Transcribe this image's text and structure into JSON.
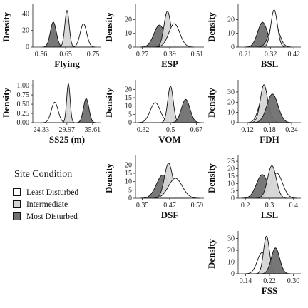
{
  "colors": {
    "least_disturbed": "#ffffff",
    "intermediate": "#d6d6d6",
    "most_disturbed": "#707070",
    "outline": "#111111"
  },
  "legend": {
    "title": "Site Condition",
    "placement": "left-middle",
    "items": [
      {
        "label": "Least Disturbed",
        "color": "#ffffff"
      },
      {
        "label": "Intermediate",
        "color": "#d6d6d6"
      },
      {
        "label": "Most Disturbed",
        "color": "#707070"
      }
    ]
  },
  "chart_data": [
    {
      "type": "area",
      "title": "",
      "xlabel": "Flying",
      "ylabel": "Density",
      "xticks": [
        "0.56",
        "0.65",
        "0.75"
      ],
      "xlim": [
        0.53,
        0.78
      ],
      "yticks": [
        "0",
        "20",
        "40"
      ],
      "ylim": [
        0,
        48
      ],
      "series": [
        {
          "name": "Most Disturbed",
          "peak_x": 0.605,
          "peak_y": 30,
          "sd": 0.011
        },
        {
          "name": "Intermediate",
          "peak_x": 0.655,
          "peak_y": 44,
          "sd": 0.008
        },
        {
          "name": "Least Disturbed",
          "peak_x": 0.715,
          "peak_y": 28,
          "sd": 0.012
        }
      ]
    },
    {
      "type": "area",
      "title": "",
      "xlabel": "ESP",
      "ylabel": "Density",
      "xticks": [
        "0.27",
        "0.39",
        "0.51"
      ],
      "xlim": [
        0.24,
        0.54
      ],
      "yticks": [
        "0",
        "10",
        "20"
      ],
      "ylim": [
        0,
        29
      ],
      "series": [
        {
          "name": "Most Disturbed",
          "peak_x": 0.345,
          "peak_y": 16,
          "sd": 0.024
        },
        {
          "name": "Intermediate",
          "peak_x": 0.38,
          "peak_y": 26,
          "sd": 0.015
        },
        {
          "name": "Least Disturbed",
          "peak_x": 0.41,
          "peak_y": 17,
          "sd": 0.024
        }
      ]
    },
    {
      "type": "area",
      "title": "",
      "xlabel": "BSL",
      "ylabel": "Density",
      "xticks": [
        "0.21",
        "0.32",
        "0.42"
      ],
      "xlim": [
        0.18,
        0.45
      ],
      "yticks": [
        "0",
        "10",
        "20"
      ],
      "ylim": [
        0,
        29
      ],
      "series": [
        {
          "name": "Most Disturbed",
          "peak_x": 0.285,
          "peak_y": 18,
          "sd": 0.021
        },
        {
          "name": "Intermediate",
          "peak_x": 0.335,
          "peak_y": 18,
          "sd": 0.021
        },
        {
          "name": "Least Disturbed",
          "peak_x": 0.335,
          "peak_y": 27,
          "sd": 0.014
        }
      ]
    },
    {
      "type": "area",
      "title": "",
      "xlabel": "SS25 (m)",
      "ylabel": "Density",
      "xticks": [
        "24.33",
        "29.97",
        "35.61"
      ],
      "xlim": [
        22.5,
        37.5
      ],
      "yticks": [
        "0.00",
        "0.25",
        "0.50",
        "0.75",
        "1.00"
      ],
      "ylim": [
        0,
        1.08
      ],
      "series": [
        {
          "name": "Least Disturbed",
          "peak_x": 27.3,
          "peak_y": 0.55,
          "sd": 0.75
        },
        {
          "name": "Intermediate",
          "peak_x": 30.3,
          "peak_y": 1.05,
          "sd": 0.38
        },
        {
          "name": "Most Disturbed",
          "peak_x": 34.2,
          "peak_y": 0.65,
          "sd": 0.6
        }
      ]
    },
    {
      "type": "area",
      "title": "",
      "xlabel": "VOM",
      "ylabel": "Density",
      "xticks": [
        "0.32",
        "0.5",
        "0.67"
      ],
      "xlim": [
        0.27,
        0.72
      ],
      "yticks": [
        "0",
        "5",
        "10",
        "15",
        "20"
      ],
      "ylim": [
        0,
        24
      ],
      "series": [
        {
          "name": "Least Disturbed",
          "peak_x": 0.4,
          "peak_y": 12,
          "sd": 0.033
        },
        {
          "name": "Intermediate",
          "peak_x": 0.5,
          "peak_y": 22,
          "sd": 0.018
        },
        {
          "name": "Most Disturbed",
          "peak_x": 0.6,
          "peak_y": 14,
          "sd": 0.028
        }
      ]
    },
    {
      "type": "area",
      "title": "",
      "xlabel": "FDH",
      "ylabel": "Density",
      "xticks": [
        "0.12",
        "0.18",
        "0.24"
      ],
      "xlim": [
        0.095,
        0.265
      ],
      "yticks": [
        "0",
        "10",
        "20",
        "30"
      ],
      "ylim": [
        0,
        39
      ],
      "series": [
        {
          "name": "Least Disturbed",
          "peak_x": 0.165,
          "peak_y": 28,
          "sd": 0.013
        },
        {
          "name": "Intermediate",
          "peak_x": 0.165,
          "peak_y": 37,
          "sd": 0.01
        },
        {
          "name": "Most Disturbed",
          "peak_x": 0.188,
          "peak_y": 28,
          "sd": 0.015
        }
      ]
    },
    {
      "type": "area",
      "title": "",
      "xlabel": "DSF",
      "ylabel": "Density",
      "xticks": [
        "0.35",
        "0.47",
        "0.59"
      ],
      "xlim": [
        0.32,
        0.62
      ],
      "yticks": [
        "0",
        "5",
        "10",
        "15",
        "20"
      ],
      "ylim": [
        0,
        24
      ],
      "series": [
        {
          "name": "Most Disturbed",
          "peak_x": 0.44,
          "peak_y": 14,
          "sd": 0.028
        },
        {
          "name": "Intermediate",
          "peak_x": 0.465,
          "peak_y": 21,
          "sd": 0.018
        },
        {
          "name": "Least Disturbed",
          "peak_x": 0.495,
          "peak_y": 12,
          "sd": 0.03
        }
      ]
    },
    {
      "type": "area",
      "title": "",
      "xlabel": "LSL",
      "ylabel": "Density",
      "xticks": [
        "0.2",
        "0.3",
        "0.4"
      ],
      "xlim": [
        0.17,
        0.43
      ],
      "yticks": [
        "0",
        "5",
        "10",
        "15",
        "20",
        "25"
      ],
      "ylim": [
        0,
        27
      ],
      "series": [
        {
          "name": "Most Disturbed",
          "peak_x": 0.27,
          "peak_y": 16,
          "sd": 0.024
        },
        {
          "name": "Least Disturbed",
          "peak_x": 0.33,
          "peak_y": 17,
          "sd": 0.024
        },
        {
          "name": "Intermediate",
          "peak_x": 0.31,
          "peak_y": 22,
          "sd": 0.018
        }
      ]
    },
    {
      "type": "area",
      "title": "",
      "xlabel": "FSS",
      "ylabel": "Density",
      "xticks": [
        "0.14",
        "0.22",
        "0.30"
      ],
      "xlim": [
        0.115,
        0.325
      ],
      "yticks": [
        "0",
        "10",
        "20",
        "30"
      ],
      "ylim": [
        0,
        34
      ],
      "series": [
        {
          "name": "Least Disturbed",
          "peak_x": 0.195,
          "peak_y": 18,
          "sd": 0.016
        },
        {
          "name": "Intermediate",
          "peak_x": 0.21,
          "peak_y": 32,
          "sd": 0.01
        },
        {
          "name": "Most Disturbed",
          "peak_x": 0.24,
          "peak_y": 22,
          "sd": 0.014
        }
      ]
    }
  ]
}
